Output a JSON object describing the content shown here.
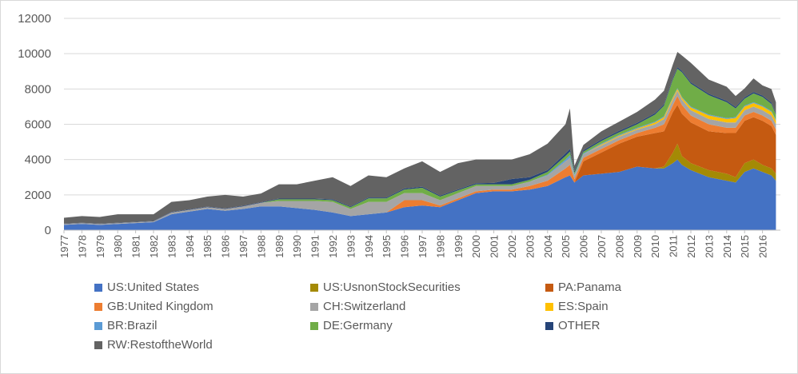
{
  "chart_data": {
    "type": "area",
    "stacked": true,
    "title": "",
    "xlabel": "",
    "ylabel": "",
    "ylim": [
      0,
      12000
    ],
    "yticks": [
      0,
      2000,
      4000,
      6000,
      8000,
      10000,
      12000
    ],
    "xlim": [
      1977.0,
      2017.0
    ],
    "xtick_labels": [
      "1977",
      "1978",
      "1979",
      "1980",
      "1981",
      "1982",
      "1983",
      "1984",
      "1985",
      "1986",
      "1987",
      "1988",
      "1989",
      "1990",
      "1991",
      "1992",
      "1993",
      "1994",
      "1995",
      "1996",
      "1997",
      "1998",
      "1999",
      "2000",
      "2001",
      "2002",
      "2003",
      "2004",
      "2005",
      "2006",
      "2007",
      "2008",
      "2009",
      "2010",
      "2011",
      "2012",
      "2013",
      "2014",
      "2015",
      "2016"
    ],
    "legend_position": "bottom",
    "x": [
      1977.0,
      1978.0,
      1979.0,
      1980.0,
      1981.0,
      1982.0,
      1983.0,
      1984.0,
      1985.0,
      1986.0,
      1987.0,
      1988.0,
      1989.0,
      1990.0,
      1991.0,
      1992.0,
      1993.0,
      1994.0,
      1995.0,
      1996.0,
      1997.0,
      1998.0,
      1999.0,
      2000.0,
      2001.0,
      2002.0,
      2003.0,
      2004.0,
      2005.0,
      2005.25,
      2005.5,
      2006.0,
      2007.0,
      2008.0,
      2009.0,
      2010.0,
      2010.5,
      2011.0,
      2011.25,
      2011.5,
      2012.0,
      2013.0,
      2014.0,
      2014.5,
      2015.0,
      2015.5,
      2016.0,
      2016.5,
      2016.75
    ],
    "series": [
      {
        "name": "US:United States",
        "color": "#4472C4",
        "values": [
          300,
          350,
          300,
          350,
          400,
          450,
          900,
          1050,
          1200,
          1100,
          1200,
          1350,
          1350,
          1250,
          1150,
          1000,
          800,
          900,
          1000,
          1300,
          1400,
          1300,
          1700,
          2100,
          2200,
          2200,
          2300,
          2500,
          3000,
          3100,
          2700,
          3100,
          3200,
          3300,
          3600,
          3500,
          3500,
          3800,
          4000,
          3700,
          3400,
          3000,
          2800,
          2700,
          3300,
          3500,
          3300,
          3100,
          2800
        ]
      },
      {
        "name": "US:UsnonStockSecurities",
        "color": "#A48A05",
        "values": [
          0,
          0,
          0,
          0,
          0,
          0,
          0,
          0,
          0,
          0,
          0,
          0,
          0,
          0,
          0,
          0,
          0,
          0,
          0,
          0,
          0,
          0,
          0,
          0,
          0,
          0,
          0,
          0,
          0,
          0,
          0,
          0,
          0,
          0,
          0,
          0,
          100,
          600,
          900,
          500,
          400,
          400,
          400,
          300,
          500,
          500,
          400,
          400,
          400
        ]
      },
      {
        "name": "PA:Panama",
        "color": "#C55A11",
        "values": [
          0,
          0,
          0,
          0,
          0,
          0,
          0,
          0,
          0,
          0,
          0,
          0,
          0,
          0,
          0,
          0,
          0,
          0,
          0,
          0,
          0,
          0,
          0,
          0,
          0,
          0,
          0,
          0,
          0,
          0,
          0,
          800,
          1200,
          1600,
          1700,
          2000,
          2000,
          2300,
          2200,
          2400,
          2300,
          2200,
          2300,
          2500,
          2400,
          2400,
          2500,
          2400,
          2200
        ]
      },
      {
        "name": "GB:United Kingdom",
        "color": "#ED7D31",
        "values": [
          0,
          0,
          0,
          0,
          0,
          0,
          0,
          0,
          0,
          0,
          0,
          0,
          0,
          0,
          0,
          0,
          0,
          0,
          0,
          400,
          300,
          100,
          100,
          100,
          100,
          100,
          200,
          300,
          500,
          600,
          200,
          200,
          200,
          200,
          200,
          300,
          400,
          400,
          500,
          500,
          400,
          400,
          300,
          300,
          300,
          300,
          300,
          300,
          300
        ]
      },
      {
        "name": "CH:Switzerland",
        "color": "#A5A5A5",
        "values": [
          50,
          50,
          50,
          50,
          50,
          50,
          100,
          100,
          100,
          100,
          150,
          200,
          300,
          400,
          500,
          600,
          400,
          700,
          600,
          400,
          400,
          300,
          300,
          300,
          200,
          200,
          250,
          300,
          400,
          400,
          200,
          200,
          200,
          200,
          200,
          200,
          300,
          300,
          300,
          300,
          300,
          300,
          300,
          300,
          300,
          300,
          300,
          300,
          300
        ]
      },
      {
        "name": "ES:Spain",
        "color": "#FFC000",
        "values": [
          0,
          0,
          0,
          0,
          0,
          0,
          0,
          0,
          0,
          0,
          0,
          0,
          0,
          0,
          0,
          0,
          0,
          0,
          0,
          0,
          0,
          0,
          0,
          0,
          0,
          0,
          0,
          0,
          0,
          0,
          0,
          0,
          50,
          50,
          50,
          100,
          100,
          100,
          100,
          100,
          150,
          200,
          200,
          250,
          200,
          200,
          200,
          200,
          200
        ]
      },
      {
        "name": "BR:Brazil",
        "color": "#5B9BD5",
        "values": [
          0,
          0,
          0,
          0,
          0,
          0,
          0,
          0,
          0,
          0,
          0,
          0,
          0,
          0,
          0,
          0,
          0,
          0,
          0,
          0,
          0,
          0,
          0,
          0,
          0,
          0,
          0,
          50,
          100,
          150,
          50,
          50,
          50,
          50,
          50,
          50,
          50,
          50,
          50,
          50,
          50,
          50,
          50,
          50,
          50,
          50,
          50,
          50,
          50
        ]
      },
      {
        "name": "DE:Germany",
        "color": "#70AD47",
        "values": [
          0,
          0,
          0,
          0,
          0,
          0,
          0,
          0,
          0,
          0,
          0,
          0,
          100,
          100,
          100,
          100,
          100,
          200,
          200,
          200,
          300,
          200,
          150,
          100,
          100,
          100,
          100,
          150,
          200,
          200,
          100,
          100,
          150,
          150,
          200,
          400,
          600,
          1000,
          1100,
          1400,
          1300,
          1100,
          900,
          500,
          400,
          500,
          500,
          400,
          300
        ]
      },
      {
        "name": "OTHER",
        "color": "#264478",
        "values": [
          20,
          20,
          20,
          20,
          20,
          20,
          30,
          30,
          30,
          30,
          30,
          30,
          40,
          40,
          40,
          50,
          50,
          50,
          50,
          60,
          60,
          60,
          60,
          60,
          80,
          300,
          150,
          100,
          150,
          150,
          100,
          80,
          80,
          80,
          80,
          80,
          80,
          80,
          80,
          80,
          80,
          80,
          80,
          80,
          80,
          80,
          80,
          80,
          80
        ]
      },
      {
        "name": "RW:RestoftheWorld",
        "color": "#636363",
        "values": [
          330,
          380,
          380,
          480,
          430,
          380,
          570,
          520,
          570,
          770,
          520,
          500,
          810,
          810,
          1010,
          1250,
          1150,
          1250,
          1150,
          1140,
          1440,
          1340,
          1490,
          1340,
          1320,
          1100,
          1300,
          1500,
          1650,
          2300,
          300,
          300,
          470,
          520,
          620,
          770,
          770,
          770,
          870,
          870,
          1100,
          800,
          800,
          620,
          500,
          770,
          570,
          770,
          620
        ]
      }
    ]
  }
}
